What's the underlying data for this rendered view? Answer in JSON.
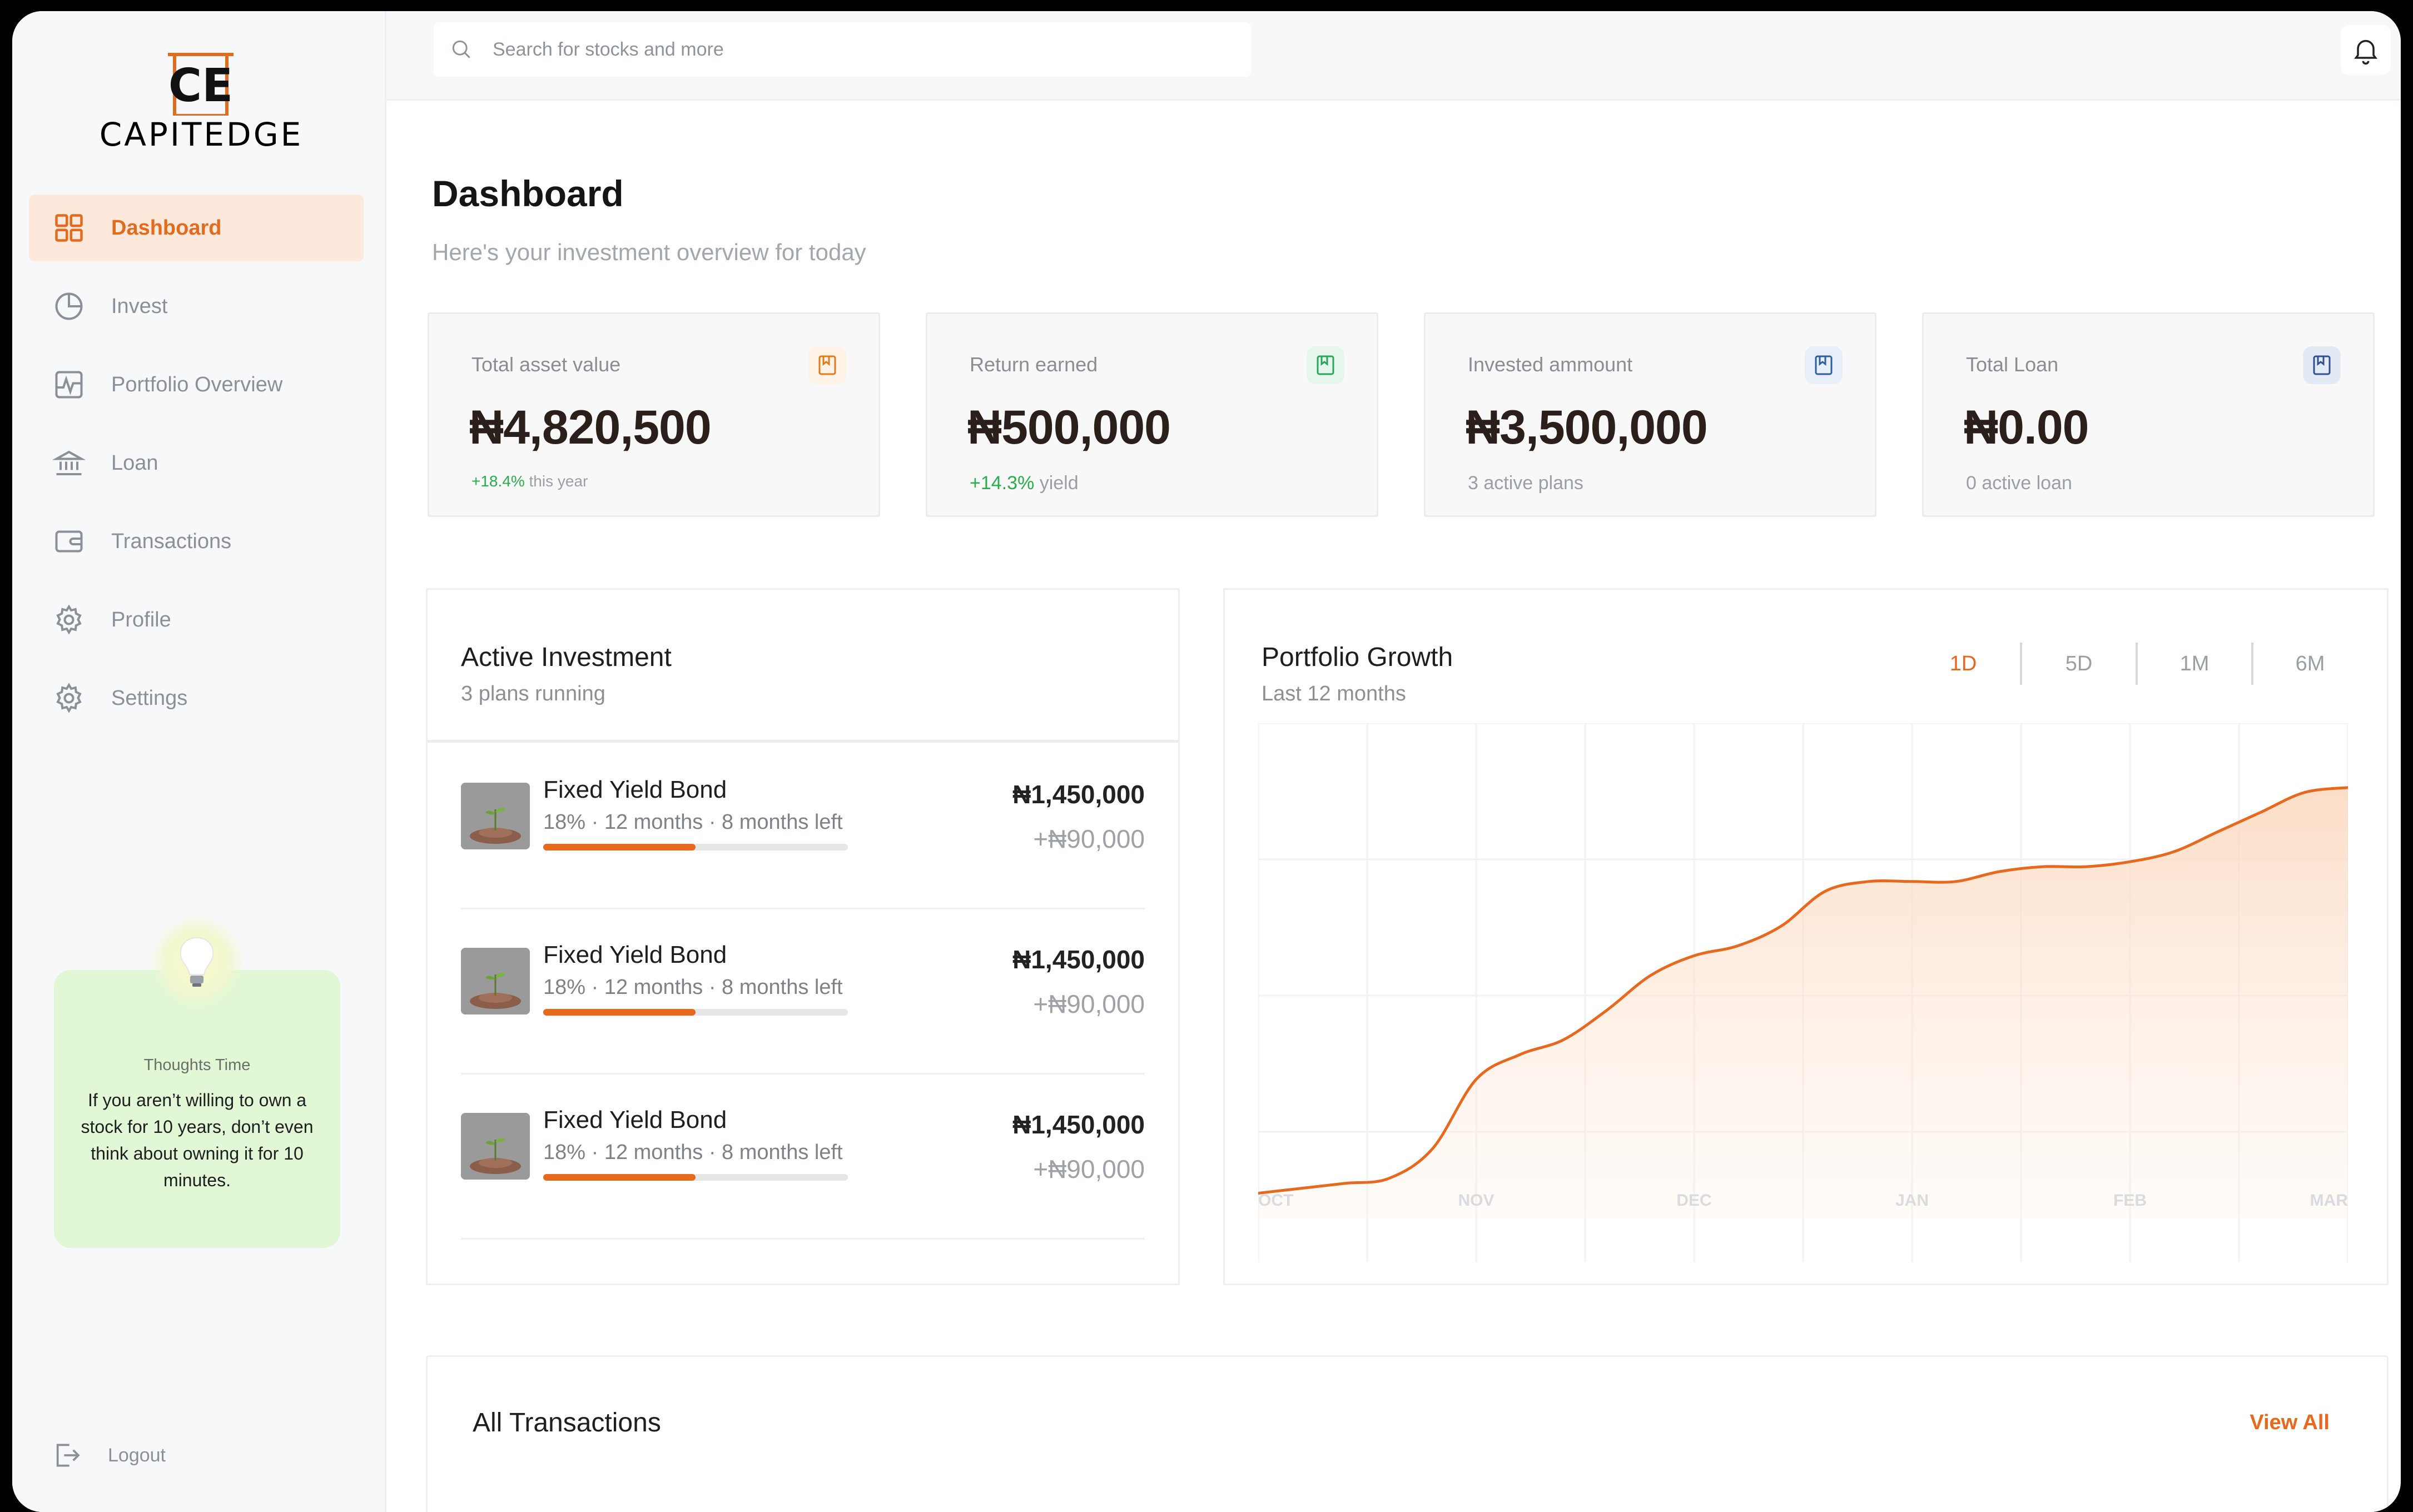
{
  "brand": {
    "monogram": "CE",
    "name": "CAPITEDGE",
    "accent": "#e8681e"
  },
  "sidebar": {
    "items": [
      {
        "label": "Dashboard",
        "icon": "grid-icon",
        "active": true
      },
      {
        "label": "Invest",
        "icon": "pie-chart-icon"
      },
      {
        "label": "Portfolio Overview",
        "icon": "activity-chart-icon"
      },
      {
        "label": "Loan",
        "icon": "bank-icon"
      },
      {
        "label": "Transactions",
        "icon": "wallet-icon"
      },
      {
        "label": "Profile",
        "icon": "gear-icon"
      },
      {
        "label": "Settings",
        "icon": "gear-icon"
      }
    ],
    "tip": {
      "title": "Thoughts Time",
      "text": "If you aren’t willing to own a stock for 10 years, don’t even think about owning it for 10 minutes."
    },
    "logout_label": "Logout"
  },
  "topbar": {
    "search_placeholder": "Search for stocks and more"
  },
  "header": {
    "title": "Dashboard",
    "subtitle": "Here's your investment overview for today"
  },
  "stats": [
    {
      "label": "Total asset value",
      "value": "₦4,820,500",
      "note_highlight": "+18.4%",
      "note": "this year",
      "icon_color": "#e07a1a"
    },
    {
      "label": "Return earned",
      "value": "₦500,000",
      "note_highlight": "+14.3%",
      "note": "yield",
      "icon_color": "#2aa55a"
    },
    {
      "label": "Invested ammount",
      "value": "₦3,500,000",
      "note_highlight": "",
      "note": "3 active plans",
      "icon_color": "#2f5e9e"
    },
    {
      "label": "Total Loan",
      "value": "₦0.00",
      "note_highlight": "",
      "note": "0 active loan",
      "icon_color": "#2f4f8e"
    }
  ],
  "active_investment": {
    "title": "Active Investment",
    "subtitle": "3 plans running",
    "items": [
      {
        "name": "Fixed Yield Bond",
        "meta": "18% · 12 months · 8 months left",
        "amount": "₦1,450,000",
        "gain": "+₦90,000",
        "progress": 0.5
      },
      {
        "name": "Fixed Yield Bond",
        "meta": "18% · 12 months · 8 months left",
        "amount": "₦1,450,000",
        "gain": "+₦90,000",
        "progress": 0.5
      },
      {
        "name": "Fixed Yield Bond",
        "meta": "18% · 12 months · 8 months left",
        "amount": "₦1,450,000",
        "gain": "+₦90,000",
        "progress": 0.5
      }
    ]
  },
  "portfolio_growth": {
    "title": "Portfolio Growth",
    "subtitle": "Last 12 months",
    "tabs": [
      "1D",
      "5D",
      "1M",
      "6M"
    ],
    "active_tab": "1D"
  },
  "chart_data": {
    "type": "area",
    "categories": [
      "OCT",
      "NOV",
      "DEC",
      "JAN",
      "FEB",
      "MAR"
    ],
    "x": [
      0,
      0.2,
      0.4,
      0.6,
      0.8,
      1.0,
      1.2,
      1.4,
      1.6,
      1.8,
      2.0,
      2.2,
      2.4,
      2.6,
      2.8,
      3.0,
      3.2,
      3.4,
      3.6,
      3.8,
      4.0,
      4.2,
      4.4,
      4.6,
      4.8,
      5.0
    ],
    "values": [
      5,
      6,
      7,
      8,
      14,
      28,
      33,
      36,
      42,
      49,
      53,
      55,
      59,
      66,
      68,
      68,
      68,
      70,
      71,
      71,
      72,
      74,
      78,
      82,
      86,
      87
    ],
    "ylim": [
      0,
      100
    ],
    "color": "#e8681e",
    "grid": true,
    "xlabel": "",
    "ylabel": ""
  },
  "transactions": {
    "title": "All Transactions",
    "view_all": "View All"
  }
}
